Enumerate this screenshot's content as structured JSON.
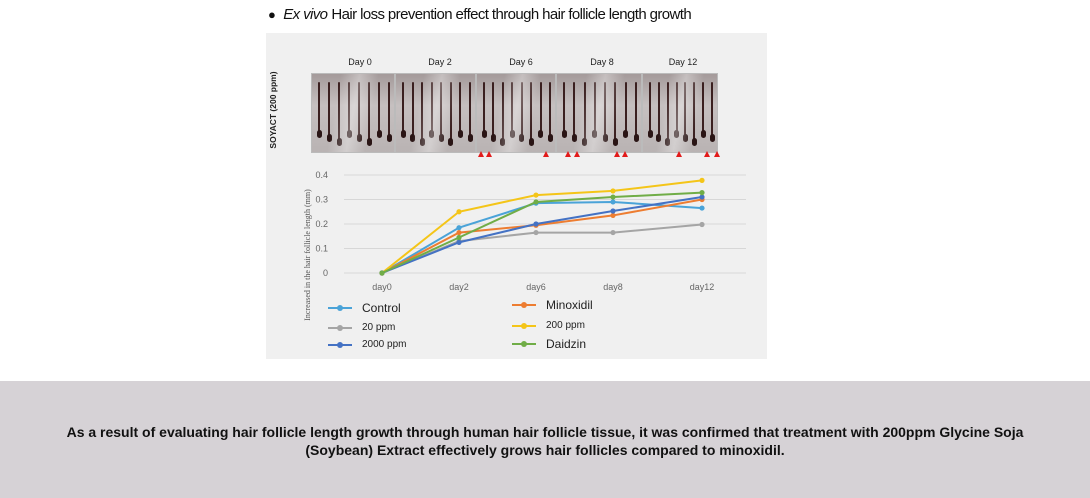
{
  "heading": {
    "bullet": "●",
    "italic": "Ex vivo",
    "text": "Hair loss prevention effect through hair follicle length growth"
  },
  "photos": {
    "row_label": "SOYACT (200 ppm)",
    "days": [
      "Day 0",
      "Day 2",
      "Day 6",
      "Day 8",
      "Day 12"
    ],
    "arrow_color": "#e21b1b"
  },
  "chart_data": {
    "type": "line",
    "title": "",
    "xlabel": "",
    "ylabel": "Increased in the hair follicle length (mm)",
    "categories": [
      "day0",
      "day2",
      "day6",
      "day8",
      "day12"
    ],
    "yticks": [
      "0",
      "0.1",
      "0.2",
      "0.3",
      "0.4"
    ],
    "ylim": [
      0,
      0.4
    ],
    "grid": true,
    "legend_placement": "bottom",
    "series": [
      {
        "name": "Control",
        "color": "#4aa3d8",
        "values": [
          0,
          0.185,
          0.285,
          0.29,
          0.265
        ]
      },
      {
        "name": "Minoxidil",
        "color": "#ed7d31",
        "values": [
          0,
          0.165,
          0.195,
          0.235,
          0.3
        ]
      },
      {
        "name": "20 ppm",
        "color": "#a5a5a5",
        "values": [
          0,
          0.13,
          0.165,
          0.165,
          0.198
        ]
      },
      {
        "name": "200 ppm",
        "color": "#f4c518",
        "values": [
          0,
          0.25,
          0.318,
          0.335,
          0.378
        ]
      },
      {
        "name": "2000 ppm",
        "color": "#4472c4",
        "values": [
          0,
          0.125,
          0.2,
          0.253,
          0.31
        ]
      },
      {
        "name": "Daidzin",
        "color": "#70ad47",
        "values": [
          0,
          0.145,
          0.29,
          0.31,
          0.328
        ]
      }
    ]
  },
  "footer": {
    "text": "As a result of evaluating hair follicle length growth through human hair follicle tissue, it was confirmed that treatment with 200ppm Glycine Soja (Soybean) Extract effectively grows hair follicles compared to minoxidil."
  }
}
